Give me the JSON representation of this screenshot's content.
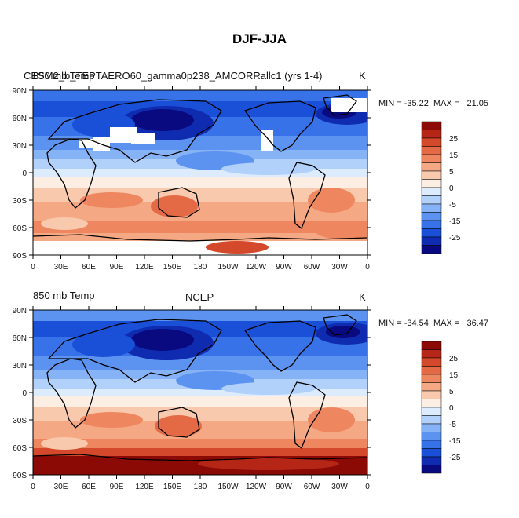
{
  "title": "DJF-JJA",
  "colors": [
    "#0a0a80",
    "#0f2cb0",
    "#1a4fd8",
    "#3772e8",
    "#5c93f0",
    "#86b3f5",
    "#b1d0fa",
    "#dcebfd",
    "#fdeee3",
    "#f8c9ad",
    "#f4a884",
    "#ee8760",
    "#e46a45",
    "#d4482b",
    "#b52617",
    "#8b0a05"
  ],
  "colorbar_labels": [
    "25",
    "15",
    "5",
    "0",
    "-5",
    "-15",
    "-25"
  ],
  "lat_labels": [
    "90N",
    "60N",
    "30N",
    "0",
    "30S",
    "60S",
    "90S"
  ],
  "lon_labels": [
    "0",
    "30E",
    "60E",
    "90E",
    "120E",
    "150E",
    "180",
    "150W",
    "120W",
    "90W",
    "60W",
    "30W",
    "0"
  ],
  "panels": [
    {
      "left_title": "850 mb Temp",
      "center_title": "CESM2_b_TEPTAERO60_gamma0p238_AMCORRallc1 (yrs 1-4)",
      "right_title": "K",
      "stats": "MIN = -35.22  MAX =   21.05"
    },
    {
      "left_title": "850 mb Temp",
      "center_title": "NCEP",
      "right_title": "K",
      "stats": "MIN = -34.54  MAX =   36.47"
    }
  ]
}
